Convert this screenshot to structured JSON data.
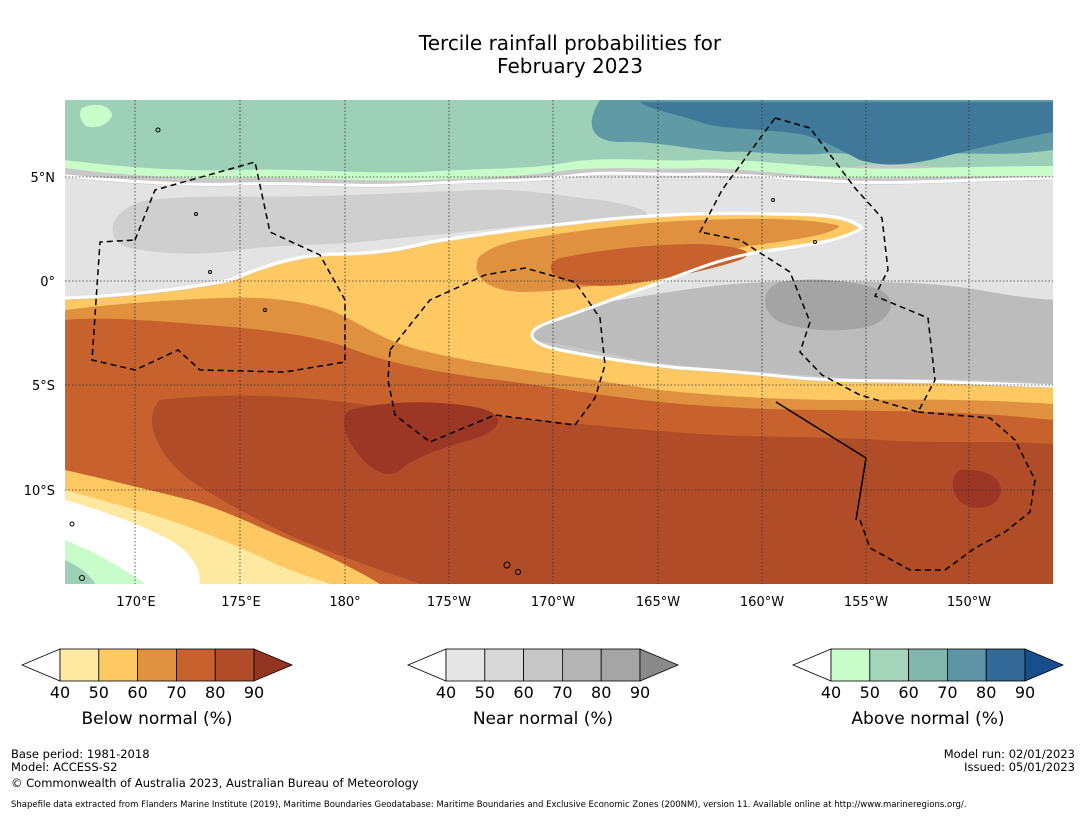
{
  "title": {
    "line1": "Tercile rainfall probabilities for",
    "line2": "February 2023"
  },
  "map": {
    "lat_ticks": [
      {
        "label": "5°N",
        "lat": 5
      },
      {
        "label": "0°",
        "lat": 0
      },
      {
        "label": "5°S",
        "lat": -5
      },
      {
        "label": "10°S",
        "lat": -10
      }
    ],
    "lon_ticks": [
      {
        "label": "170°E",
        "lon": 170
      },
      {
        "label": "175°E",
        "lon": 175
      },
      {
        "label": "180°",
        "lon": 180
      },
      {
        "label": "175°W",
        "lon": 185
      },
      {
        "label": "170°W",
        "lon": 190
      },
      {
        "label": "165°W",
        "lon": 195
      },
      {
        "label": "160°W",
        "lon": 200
      },
      {
        "label": "155°W",
        "lon": 205
      },
      {
        "label": "150°W",
        "lon": 210
      }
    ],
    "extent": {
      "lon_min": 166.5,
      "lon_max": 213.7,
      "lat_min": -14.3,
      "lat_max": 8.7
    }
  },
  "legends": [
    {
      "name": "below",
      "label": "Below normal (%)",
      "ticks": [
        "40",
        "50",
        "60",
        "70",
        "80",
        "90"
      ],
      "colors": [
        "#ffffff",
        "#ffe9a0",
        "#fec963",
        "#e0913f",
        "#c7622f",
        "#b04c27",
        "#943422"
      ]
    },
    {
      "name": "near",
      "label": "Near normal (%)",
      "ticks": [
        "40",
        "50",
        "60",
        "70",
        "80",
        "90"
      ],
      "colors": [
        "#ffffff",
        "#e6e6e6",
        "#d8d8d8",
        "#c7c7c7",
        "#b4b4b4",
        "#a5a5a5",
        "#8a8a8a"
      ]
    },
    {
      "name": "above",
      "label": "Above normal (%)",
      "ticks": [
        "40",
        "50",
        "60",
        "70",
        "80",
        "90"
      ],
      "colors": [
        "#ffffff",
        "#c8fcc8",
        "#a3d5bb",
        "#80b6ab",
        "#5d93a2",
        "#336a99",
        "#174f8c"
      ]
    }
  ],
  "footer": {
    "base_period": "Base period: 1981-2018",
    "model": "Model: ACCESS-S2",
    "copyright": "© Commonwealth of Australia 2023, Australian Bureau of Meteorology",
    "shapefile": "Shapefile data extracted from Flanders Marine Institute (2019), Maritime Boundaries Geodatabase: Maritime Boundaries and Exclusive Economic Zones (200NM), version 11. Available online at http://www.marineregions.org/.",
    "model_run": "Model run: 02/01/2023",
    "issued": "Issued: 05/01/2023"
  }
}
